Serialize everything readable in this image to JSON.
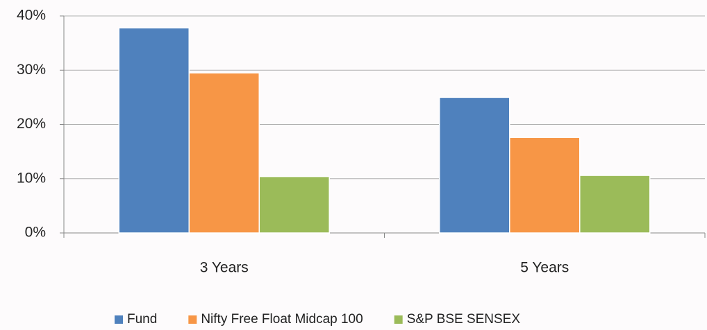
{
  "chart_data": {
    "type": "bar",
    "categories": [
      "3 Years",
      "5 Years"
    ],
    "series": [
      {
        "name": "Fund",
        "color": "#4f81bd",
        "values": [
          37.8,
          25.0
        ]
      },
      {
        "name": "Nifty Free Float Midcap 100",
        "color": "#f79646",
        "values": [
          29.5,
          17.6
        ]
      },
      {
        "name": "S&P BSE SENSEX",
        "color": "#9bbb59",
        "values": [
          10.4,
          10.6
        ]
      }
    ],
    "ylim": [
      0,
      40
    ],
    "yticks": [
      {
        "value": 0,
        "label": "0%"
      },
      {
        "value": 10,
        "label": "10%"
      },
      {
        "value": 20,
        "label": "20%"
      },
      {
        "value": 30,
        "label": "30%"
      },
      {
        "value": 40,
        "label": "40%"
      }
    ],
    "grid": true,
    "legend": "bottom"
  }
}
